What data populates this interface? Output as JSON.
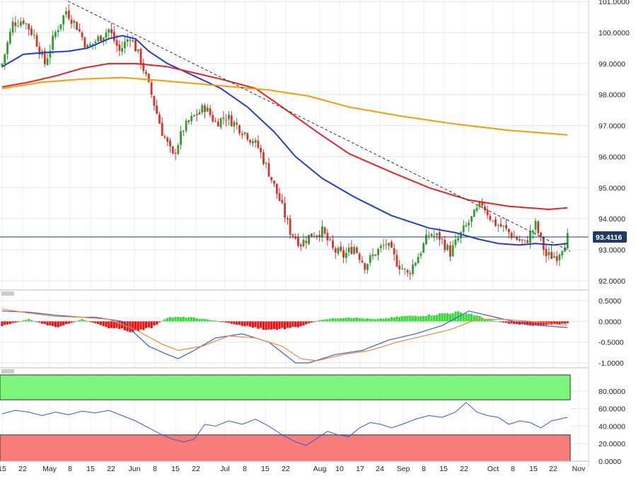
{
  "chart_data": [
    {
      "type": "candlestick",
      "title": "",
      "y_min": 91.7,
      "y_max": 101.05,
      "y_ticks": [
        "92.0000",
        "93.0000",
        "94.0000",
        "95.0000",
        "96.0000",
        "97.0000",
        "98.0000",
        "99.0000",
        "100.0000",
        "101.0000"
      ],
      "x_ticks": [
        "15",
        "22",
        "May",
        "8",
        "15",
        "22",
        "Jun",
        "8",
        "15",
        "22",
        "Jul",
        "8",
        "15",
        "22",
        "Aug",
        "10",
        "17",
        "24",
        "Sep",
        "8",
        "15",
        "22",
        "Oct",
        "8",
        "15",
        "22",
        "Nov"
      ],
      "last_price_label": "93.4116",
      "last_price": 93.4116,
      "colors": {
        "up": "#2e9e32",
        "down": "#d8322b",
        "ema_fast": "#2538d8",
        "ema_mid": "#ee2222",
        "ema_slow": "#ff9900",
        "trendline": "#333333",
        "price_line": "#1f3a7a",
        "price_badge": "#1f3a6a"
      },
      "candles_anchor_closes": [
        [
          0,
          99.0
        ],
        [
          4,
          100.3
        ],
        [
          8,
          100.4
        ],
        [
          12,
          99.9
        ],
        [
          16,
          99.0
        ],
        [
          20,
          100.0
        ],
        [
          24,
          100.7
        ],
        [
          28,
          100.2
        ],
        [
          32,
          99.5
        ],
        [
          36,
          99.8
        ],
        [
          40,
          100.1
        ],
        [
          44,
          99.4
        ],
        [
          48,
          99.9
        ],
        [
          52,
          99.1
        ],
        [
          56,
          98.0
        ],
        [
          60,
          96.8
        ],
        [
          64,
          96.0
        ],
        [
          68,
          96.9
        ],
        [
          72,
          97.3
        ],
        [
          76,
          97.6
        ],
        [
          80,
          97.1
        ],
        [
          84,
          97.3
        ],
        [
          88,
          97.0
        ],
        [
          92,
          96.7
        ],
        [
          96,
          96.3
        ],
        [
          100,
          95.5
        ],
        [
          104,
          94.6
        ],
        [
          108,
          93.6
        ],
        [
          112,
          93.2
        ],
        [
          116,
          93.5
        ],
        [
          120,
          93.6
        ],
        [
          124,
          93.0
        ],
        [
          128,
          92.8
        ],
        [
          132,
          93.1
        ],
        [
          136,
          92.5
        ],
        [
          140,
          92.9
        ],
        [
          144,
          93.2
        ],
        [
          148,
          92.6
        ],
        [
          152,
          92.2
        ],
        [
          156,
          92.8
        ],
        [
          160,
          93.5
        ],
        [
          164,
          93.4
        ],
        [
          168,
          92.9
        ],
        [
          172,
          93.5
        ],
        [
          176,
          94.0
        ],
        [
          180,
          94.5
        ],
        [
          184,
          93.9
        ],
        [
          188,
          93.7
        ],
        [
          192,
          93.4
        ],
        [
          196,
          93.2
        ],
        [
          200,
          93.8
        ],
        [
          204,
          92.8
        ],
        [
          208,
          92.8
        ],
        [
          212,
          93.4
        ]
      ],
      "series": [
        {
          "name": "",
          "kind": "ema_fast",
          "points": [
            [
              0,
              98.9
            ],
            [
              8,
              99.3
            ],
            [
              15,
              99.35
            ],
            [
              25,
              99.4
            ],
            [
              32,
              99.5
            ],
            [
              40,
              99.8
            ],
            [
              45,
              99.9
            ],
            [
              50,
              99.8
            ],
            [
              55,
              99.4
            ],
            [
              62,
              99.0
            ],
            [
              72,
              98.6
            ],
            [
              82,
              98.2
            ],
            [
              92,
              97.6
            ],
            [
              102,
              96.8
            ],
            [
              110,
              96.0
            ],
            [
              120,
              95.3
            ],
            [
              132,
              94.7
            ],
            [
              146,
              94.1
            ],
            [
              160,
              93.7
            ],
            [
              170,
              93.55
            ],
            [
              178,
              93.35
            ],
            [
              186,
              93.2
            ],
            [
              194,
              93.15
            ],
            [
              200,
              93.2
            ],
            [
              207,
              93.15
            ],
            [
              212,
              93.2
            ]
          ]
        },
        {
          "name": "",
          "kind": "ema_mid",
          "points": [
            [
              0,
              98.25
            ],
            [
              10,
              98.4
            ],
            [
              20,
              98.6
            ],
            [
              30,
              98.85
            ],
            [
              40,
              99.0
            ],
            [
              50,
              99.0
            ],
            [
              62,
              98.9
            ],
            [
              72,
              98.7
            ],
            [
              82,
              98.5
            ],
            [
              95,
              98.2
            ],
            [
              105,
              97.6
            ],
            [
              118,
              96.8
            ],
            [
              130,
              96.1
            ],
            [
              146,
              95.5
            ],
            [
              160,
              95.0
            ],
            [
              175,
              94.6
            ],
            [
              190,
              94.4
            ],
            [
              205,
              94.3
            ],
            [
              212,
              94.35
            ]
          ]
        },
        {
          "name": "",
          "kind": "ema_slow",
          "points": [
            [
              0,
              98.2
            ],
            [
              15,
              98.4
            ],
            [
              30,
              98.5
            ],
            [
              45,
              98.55
            ],
            [
              60,
              98.45
            ],
            [
              80,
              98.3
            ],
            [
              100,
              98.15
            ],
            [
              115,
              97.95
            ],
            [
              130,
              97.6
            ],
            [
              150,
              97.3
            ],
            [
              170,
              97.05
            ],
            [
              190,
              96.85
            ],
            [
              212,
              96.7
            ]
          ]
        },
        {
          "name": "",
          "kind": "trendline",
          "points": [
            [
              18,
              101.3
            ],
            [
              213,
              92.95
            ]
          ]
        }
      ]
    },
    {
      "type": "macd_histogram",
      "y_min": -1.12,
      "y_max": 0.62,
      "y_ticks": [
        "0.5000",
        "0.0000",
        "-0.5000",
        "-1.0000"
      ],
      "histogram_anchors": [
        [
          0,
          -0.1
        ],
        [
          10,
          0.05
        ],
        [
          20,
          -0.15
        ],
        [
          30,
          0.05
        ],
        [
          40,
          -0.15
        ],
        [
          50,
          -0.25
        ],
        [
          56,
          -0.15
        ],
        [
          62,
          0.1
        ],
        [
          70,
          0.1
        ],
        [
          80,
          0.02
        ],
        [
          90,
          -0.1
        ],
        [
          100,
          -0.2
        ],
        [
          110,
          -0.15
        ],
        [
          120,
          0.05
        ],
        [
          130,
          0.1
        ],
        [
          140,
          0.05
        ],
        [
          150,
          0.12
        ],
        [
          160,
          0.15
        ],
        [
          170,
          0.22
        ],
        [
          176,
          0.18
        ],
        [
          182,
          0.05
        ],
        [
          190,
          -0.05
        ],
        [
          200,
          -0.1
        ],
        [
          212,
          -0.05
        ]
      ],
      "series": [
        {
          "name": "",
          "kind": "macd",
          "points": [
            [
              0,
              0.25
            ],
            [
              10,
              0.22
            ],
            [
              20,
              0.15
            ],
            [
              30,
              0.1
            ],
            [
              35,
              0.1
            ],
            [
              45,
              0.0
            ],
            [
              55,
              -0.6
            ],
            [
              62,
              -0.8
            ],
            [
              66,
              -0.9
            ],
            [
              72,
              -0.7
            ],
            [
              80,
              -0.4
            ],
            [
              90,
              -0.3
            ],
            [
              100,
              -0.5
            ],
            [
              110,
              -1.0
            ],
            [
              115,
              -1.0
            ],
            [
              125,
              -0.8
            ],
            [
              135,
              -0.7
            ],
            [
              145,
              -0.45
            ],
            [
              155,
              -0.3
            ],
            [
              165,
              -0.1
            ],
            [
              175,
              0.25
            ],
            [
              185,
              0.1
            ],
            [
              195,
              -0.05
            ],
            [
              202,
              -0.1
            ],
            [
              212,
              -0.15
            ]
          ]
        },
        {
          "name": "",
          "kind": "signal",
          "points": [
            [
              0,
              0.3
            ],
            [
              10,
              0.2
            ],
            [
              20,
              0.12
            ],
            [
              30,
              0.1
            ],
            [
              40,
              0.05
            ],
            [
              50,
              -0.2
            ],
            [
              60,
              -0.55
            ],
            [
              66,
              -0.7
            ],
            [
              75,
              -0.6
            ],
            [
              85,
              -0.35
            ],
            [
              95,
              -0.4
            ],
            [
              105,
              -0.6
            ],
            [
              112,
              -0.9
            ],
            [
              118,
              -0.95
            ],
            [
              128,
              -0.8
            ],
            [
              138,
              -0.7
            ],
            [
              148,
              -0.5
            ],
            [
              158,
              -0.35
            ],
            [
              168,
              -0.2
            ],
            [
              178,
              0.05
            ],
            [
              188,
              0.05
            ],
            [
              198,
              0.0
            ],
            [
              206,
              -0.05
            ],
            [
              212,
              -0.1
            ]
          ]
        }
      ]
    },
    {
      "type": "rsi",
      "y_min": 0,
      "y_max": 100,
      "y_ticks": [
        "80.0000",
        "60.0000",
        "40.0000",
        "20.0000",
        "0.0000"
      ],
      "overbought": 70,
      "oversold": 30,
      "colors": {
        "overbought_zone": "#7cf57a",
        "oversold_zone": "#f77c7a",
        "line": "#3a56d8"
      },
      "series": [
        {
          "name": "",
          "kind": "rsi",
          "points": [
            [
              0,
              54
            ],
            [
              5,
              58
            ],
            [
              10,
              56
            ],
            [
              15,
              52
            ],
            [
              20,
              56
            ],
            [
              25,
              53
            ],
            [
              30,
              57
            ],
            [
              35,
              55
            ],
            [
              40,
              58
            ],
            [
              45,
              52
            ],
            [
              50,
              46
            ],
            [
              55,
              38
            ],
            [
              60,
              30
            ],
            [
              64,
              25
            ],
            [
              68,
              22
            ],
            [
              72,
              25
            ],
            [
              76,
              42
            ],
            [
              80,
              40
            ],
            [
              85,
              46
            ],
            [
              90,
              42
            ],
            [
              95,
              48
            ],
            [
              100,
              40
            ],
            [
              105,
              30
            ],
            [
              110,
              22
            ],
            [
              114,
              18
            ],
            [
              118,
              26
            ],
            [
              122,
              34
            ],
            [
              126,
              30
            ],
            [
              130,
              28
            ],
            [
              134,
              38
            ],
            [
              138,
              44
            ],
            [
              142,
              42
            ],
            [
              146,
              38
            ],
            [
              150,
              42
            ],
            [
              155,
              48
            ],
            [
              160,
              52
            ],
            [
              165,
              50
            ],
            [
              170,
              56
            ],
            [
              174,
              67
            ],
            [
              178,
              56
            ],
            [
              182,
              52
            ],
            [
              186,
              50
            ],
            [
              190,
              42
            ],
            [
              194,
              46
            ],
            [
              198,
              44
            ],
            [
              202,
              38
            ],
            [
              206,
              46
            ],
            [
              212,
              50
            ]
          ]
        }
      ]
    }
  ]
}
